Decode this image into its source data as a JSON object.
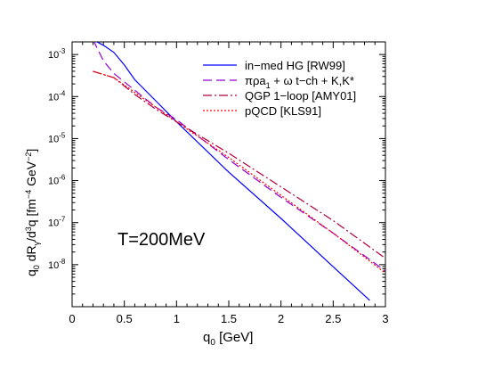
{
  "chart_data": {
    "type": "line",
    "xlabel": "q0 [GeV]",
    "ylabel": "q0 dRγ/d3q  [fm−4 GeV−2]",
    "annotation": "T=200MeV",
    "xlim": [
      0,
      3
    ],
    "ylim_log10": [
      -9,
      -2.7
    ],
    "yscale": "log",
    "grid": false,
    "legend_position": "top-right",
    "x_ticks": [
      "0",
      "0.5",
      "1",
      "1.5",
      "2",
      "2.5",
      "3"
    ],
    "y_ticks": [
      {
        "base": "10",
        "exp": "-3",
        "log": -3
      },
      {
        "base": "10",
        "exp": "-4",
        "log": -4
      },
      {
        "base": "10",
        "exp": "-5",
        "log": -5
      },
      {
        "base": "10",
        "exp": "-6",
        "log": -6
      },
      {
        "base": "10",
        "exp": "-7",
        "log": -7
      },
      {
        "base": "10",
        "exp": "-8",
        "log": -8
      }
    ],
    "series": [
      {
        "name": "in−med HG [RW99]",
        "color": "#0000ff",
        "dash": "solid",
        "x": [
          0.2,
          0.3,
          0.4,
          0.5,
          0.6,
          0.8,
          1.0,
          1.5,
          2.0,
          2.5,
          2.85
        ],
        "log10_y": [
          -2.65,
          -2.78,
          -2.95,
          -3.25,
          -3.6,
          -4.1,
          -4.6,
          -5.8,
          -6.9,
          -8.05,
          -8.85
        ]
      },
      {
        "name": "πρa1 + ω t−ch + K,K*",
        "color": "#9400d3",
        "dash": "10,5",
        "x": [
          0.2,
          0.3,
          0.4,
          0.6,
          0.8,
          1.0,
          1.5,
          2.0,
          2.5,
          3.0
        ],
        "log10_y": [
          -2.65,
          -3.15,
          -3.45,
          -3.85,
          -4.25,
          -4.55,
          -5.5,
          -6.4,
          -7.25,
          -8.15
        ]
      },
      {
        "name": "QGP 1−loop [AMY01]",
        "color": "#b0003a",
        "dash": "10,3,2,3",
        "x": [
          0.2,
          0.4,
          0.6,
          0.8,
          1.0,
          1.5,
          2.0,
          2.5,
          3.0
        ],
        "log10_y": [
          -3.4,
          -3.55,
          -3.95,
          -4.3,
          -4.6,
          -5.35,
          -6.15,
          -6.95,
          -7.85
        ]
      },
      {
        "name": "pQCD [KLS91]",
        "color": "#ff0000",
        "dash": "2,2",
        "x": [
          0.2,
          0.4,
          0.6,
          0.8,
          1.0,
          1.5,
          2.0,
          2.5,
          3.0
        ],
        "log10_y": [
          -3.4,
          -3.55,
          -3.9,
          -4.25,
          -4.6,
          -5.45,
          -6.35,
          -7.25,
          -8.2
        ]
      }
    ]
  },
  "labels": {
    "xlabel_main": "q",
    "xlabel_sub": "0",
    "xlabel_rest": " [GeV]",
    "y_q0": "q",
    "y_sub0": "0",
    "y_dR": " dR",
    "y_subgamma": "γ",
    "y_d3": "/d",
    "y_sup3": "3",
    "y_q": "q  [fm",
    "y_sup_m4": "−4",
    "y_gev": " GeV",
    "y_sup_m2": "−2",
    "y_close": "]",
    "leg2_a": "πρa",
    "leg2_sub": "1",
    "leg2_b": " + ω t−ch + K,K*"
  }
}
